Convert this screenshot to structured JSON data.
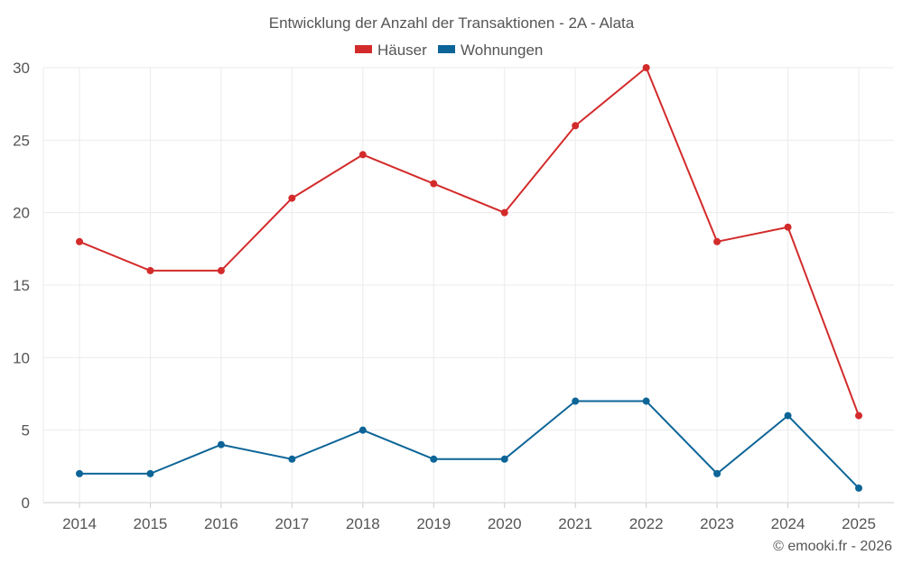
{
  "chart_data": {
    "type": "line",
    "title": "Entwicklung der Anzahl der Transaktionen - 2A - Alata",
    "categories": [
      "2014",
      "2015",
      "2016",
      "2017",
      "2018",
      "2019",
      "2020",
      "2021",
      "2022",
      "2023",
      "2024",
      "2025"
    ],
    "series": [
      {
        "name": "Häuser",
        "color": "#d32b2b",
        "values": [
          18,
          16,
          16,
          21,
          24,
          22,
          20,
          26,
          30,
          18,
          19,
          6
        ]
      },
      {
        "name": "Wohnungen",
        "color": "#0d6597",
        "values": [
          2,
          2,
          4,
          3,
          5,
          3,
          3,
          7,
          7,
          2,
          6,
          1
        ]
      }
    ],
    "ylim": [
      0,
      30
    ],
    "yticks": [
      "0",
      "5",
      "10",
      "15",
      "20",
      "25",
      "30"
    ],
    "xlabel": "",
    "ylabel": "",
    "grid": true,
    "legend": "top-center"
  },
  "credit": "© emooki.fr - 2026"
}
